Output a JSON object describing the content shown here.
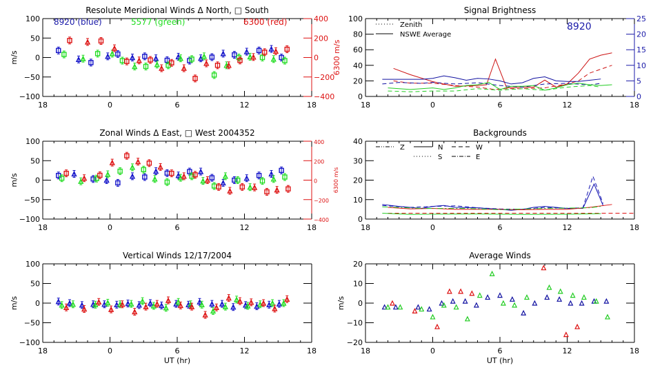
{
  "chart_data": [
    {
      "id": "meridional",
      "type": "scatter",
      "title": "Resolute Meridional Winds Δ North, □ South",
      "xlabel": "",
      "ylabel": "m/s",
      "y2label": "6300 m/s",
      "xlim": [
        -6,
        18
      ],
      "xticks": [
        "18",
        "0",
        "6",
        "12",
        "18"
      ],
      "ylim": [
        -100,
        100
      ],
      "yticks": [
        "100",
        "50",
        "0",
        "−50",
        "−100"
      ],
      "y2lim": [
        -400,
        400
      ],
      "y2ticks": [
        "400",
        "200",
        "0",
        "−200",
        "−400"
      ],
      "annotations": [
        {
          "text": "8920 (blue)",
          "color": "#1a1aa8"
        },
        {
          "text": "5577 (green)",
          "color": "#22dd22"
        },
        {
          "text": "6300 (red)",
          "color": "#dd1111"
        }
      ],
      "series": [
        {
          "name": "8920",
          "color": "#1010c8",
          "x": [
            -4.6,
            -2.8,
            -1.7,
            -0.2,
            0.7,
            2.0,
            3.1,
            4.1,
            5.1,
            6.1,
            7.1,
            8.1,
            9.1,
            10.1,
            11.1,
            12.2,
            13.3,
            14.4,
            15.3
          ],
          "y": [
            18,
            -5,
            -13,
            3,
            9,
            0,
            3,
            -2,
            -7,
            2,
            -8,
            -2,
            1,
            10,
            7,
            15,
            18,
            22,
            0
          ]
        },
        {
          "name": "5577",
          "color": "#22dd22",
          "x": [
            -4.1,
            -2.4,
            -1.1,
            0.2,
            1.1,
            2.2,
            3.2,
            4.2,
            5.2,
            6.3,
            7.3,
            8.4,
            9.3,
            10.4,
            11.5,
            12.5,
            13.6,
            14.6,
            15.6
          ],
          "y": [
            8,
            -3,
            10,
            10,
            -8,
            -23,
            -23,
            -18,
            -20,
            -2,
            -4,
            3,
            -45,
            -20,
            0,
            2,
            0,
            -4,
            -8
          ]
        },
        {
          "name": "6300",
          "color": "#dd1111",
          "x": [
            -3.6,
            -2.0,
            -0.8,
            0.4,
            1.5,
            2.6,
            3.6,
            4.6,
            5.5,
            6.6,
            7.6,
            8.6,
            9.6,
            10.6,
            11.6,
            12.8,
            13.8,
            14.8,
            15.8
          ],
          "y": [
            175,
            160,
            170,
            95,
            -40,
            -30,
            -25,
            -110,
            -55,
            -110,
            -215,
            -60,
            -80,
            -80,
            -30,
            5,
            55,
            65,
            85
          ]
        }
      ]
    },
    {
      "id": "brightness",
      "type": "line",
      "title": "Signal Brightness",
      "xlim": [
        -6,
        18
      ],
      "xticks": [
        "18",
        "0",
        "6",
        "12",
        "18"
      ],
      "ylim": [
        0,
        100
      ],
      "yticks": [
        "100",
        "80",
        "60",
        "40",
        "20",
        "0"
      ],
      "y2lim": [
        0,
        25
      ],
      "y2ticks": [
        "25",
        "20",
        "15",
        "10",
        "5",
        "0"
      ],
      "annotation": {
        "text": "8920",
        "color": "#1a1aa8"
      },
      "legend": [
        "Zenith",
        "NSWE Average"
      ],
      "legend_position": "top-left",
      "series": [
        {
          "name": "red NSWE",
          "color": "#cc1111",
          "dash": "",
          "x": [
            -3.5,
            -2,
            0,
            2,
            4,
            4.8,
            5.6,
            6.6,
            8,
            9,
            10,
            11,
            12,
            13,
            14,
            15,
            16
          ],
          "y": [
            36,
            28,
            19,
            13,
            14,
            15,
            48,
            11,
            12,
            12,
            21,
            12,
            16,
            30,
            48,
            53,
            56
          ]
        },
        {
          "name": "red zenith",
          "color": "#cc1111",
          "dash": "6,4",
          "x": [
            -3.5,
            -2,
            0,
            2,
            4,
            5.5,
            6.6,
            8,
            10,
            12,
            13,
            14,
            15,
            16
          ],
          "y": [
            20,
            17,
            17,
            14,
            12,
            9,
            10,
            10,
            11,
            16,
            20,
            30,
            35,
            40
          ]
        },
        {
          "name": "blue NSWE",
          "color": "#1010a0",
          "dash": "",
          "x": [
            -4.5,
            -3,
            -1,
            0,
            1,
            2,
            3,
            4,
            5,
            6,
            7,
            8,
            9,
            10,
            11,
            12,
            13,
            14,
            15
          ],
          "y": [
            5.5,
            5.5,
            5.5,
            5.8,
            6.6,
            6,
            5.2,
            5.8,
            5.6,
            5.0,
            4.0,
            4.4,
            5.8,
            6.3,
            5,
            4.8,
            4.8,
            5.2,
            5.6
          ]
        },
        {
          "name": "blue zenith",
          "color": "#1010a0",
          "dash": "6,4",
          "x": [
            -4.5,
            -3,
            -1,
            0,
            2,
            4,
            6,
            8,
            10,
            12,
            14,
            15
          ],
          "y": [
            4,
            4.5,
            4.2,
            4.5,
            4,
            4.4,
            3.5,
            3,
            4,
            4.2,
            3.7,
            4.2
          ]
        },
        {
          "name": "green NSWE",
          "color": "#22cc22",
          "dash": "",
          "x": [
            -4,
            -2,
            0,
            1,
            2,
            3,
            4,
            5,
            6,
            7,
            8,
            9,
            10,
            11,
            12,
            13,
            14,
            15,
            16
          ],
          "y": [
            11,
            9,
            11,
            9,
            11,
            14,
            15,
            18,
            9,
            13,
            13,
            14,
            8,
            11,
            15,
            17,
            15,
            14,
            15
          ]
        },
        {
          "name": "green zenith",
          "color": "#22cc22",
          "dash": "6,4",
          "x": [
            -4,
            -2,
            0,
            2,
            4,
            6,
            8,
            10,
            12,
            14,
            15
          ],
          "y": [
            7,
            6,
            7,
            7,
            10,
            8,
            10,
            8,
            12,
            14,
            12
          ]
        }
      ]
    },
    {
      "id": "zonal",
      "type": "scatter",
      "title": "Zonal Winds Δ East, □ West 2004352",
      "ylabel": "m/s",
      "y2label": "6300 m/s",
      "xlim": [
        -6,
        18
      ],
      "xticks": [
        "18",
        "0",
        "6",
        "12",
        "18"
      ],
      "ylim": [
        -100,
        100
      ],
      "yticks": [
        "100",
        "50",
        "0",
        "−50",
        "−100"
      ],
      "y2lim": [
        -400,
        400
      ],
      "y2ticks": [
        "400",
        "200",
        "0",
        "−200",
        "−400"
      ],
      "series": [
        {
          "name": "8920",
          "color": "#1010c8",
          "x": [
            -4.6,
            -3.2,
            -1.5,
            -0.3,
            0.7,
            2.0,
            3.1,
            4.1,
            5.1,
            6.1,
            7.1,
            8.1,
            9.1,
            10.1,
            11.1,
            12.2,
            13.3,
            14.4,
            15.3
          ],
          "y": [
            12,
            16,
            3,
            0,
            -7,
            10,
            8,
            23,
            18,
            12,
            22,
            22,
            6,
            -7,
            0,
            5,
            12,
            16,
            25
          ]
        },
        {
          "name": "5577",
          "color": "#22dd22",
          "x": [
            -4.3,
            -2.6,
            -1.2,
            -0.2,
            0.9,
            2.0,
            3.0,
            4.0,
            5.1,
            6.3,
            7.3,
            8.3,
            9.3,
            10.3,
            11.4,
            12.5,
            13.6,
            14.6,
            15.6
          ],
          "y": [
            5,
            -3,
            4,
            15,
            23,
            33,
            27,
            3,
            -5,
            6,
            10,
            -2,
            -15,
            10,
            0,
            -18,
            -2,
            3,
            8
          ]
        },
        {
          "name": "6300",
          "color": "#dd1111",
          "x": [
            -3.9,
            -2.3,
            -0.9,
            0.2,
            1.5,
            2.5,
            3.5,
            4.5,
            5.5,
            6.6,
            7.6,
            8.7,
            9.7,
            10.7,
            11.8,
            12.9,
            14.0,
            14.9,
            15.9
          ],
          "y": [
            70,
            20,
            50,
            180,
            250,
            190,
            175,
            135,
            70,
            40,
            55,
            0,
            -70,
            -110,
            -70,
            -75,
            -120,
            -100,
            -90
          ]
        }
      ]
    },
    {
      "id": "backgrounds",
      "type": "line",
      "title": "Backgrounds",
      "xlim": [
        -6,
        18
      ],
      "xticks": [
        "18",
        "0",
        "6",
        "12",
        "18"
      ],
      "ylim": [
        0,
        40
      ],
      "yticks": [
        "40",
        "30",
        "20",
        "10",
        "0"
      ],
      "legend": [
        "Z",
        "N",
        "W",
        "S",
        "E"
      ],
      "legend_position": "top-left",
      "series": [
        {
          "name": "blue N",
          "color": "#1010b0",
          "dash": "",
          "x": [
            -4.5,
            -3,
            -1,
            0,
            1,
            2,
            4,
            6,
            7,
            8,
            9,
            10,
            11,
            12,
            13.4,
            14.4,
            15.2
          ],
          "y": [
            7.5,
            6.5,
            5.5,
            6.5,
            7,
            6,
            5.8,
            5,
            4.5,
            5,
            6,
            6.5,
            6,
            5.5,
            5.5,
            18,
            7
          ]
        },
        {
          "name": "blue W",
          "color": "#1010b0",
          "dash": "6,4",
          "x": [
            -4.5,
            -2,
            0,
            2,
            4,
            6,
            8,
            10,
            12,
            13.4,
            14.3,
            15.2
          ],
          "y": [
            7,
            6,
            6.5,
            6.8,
            5.8,
            5.2,
            5,
            6,
            5.5,
            5.8,
            22,
            8
          ]
        },
        {
          "name": "red N",
          "color": "#dd1111",
          "dash": "",
          "x": [
            -4,
            -2,
            0,
            2,
            4,
            6,
            8,
            10,
            12,
            14,
            16
          ],
          "y": [
            6,
            5.2,
            5.5,
            5,
            5,
            5,
            4.8,
            5,
            5,
            6,
            7.5
          ]
        },
        {
          "name": "red W",
          "color": "#dd1111",
          "dash": "6,4",
          "x": [
            -4,
            0,
            4,
            8,
            12,
            16,
            18
          ],
          "y": [
            3,
            3,
            3,
            3,
            3,
            3,
            3
          ]
        },
        {
          "name": "green N",
          "color": "#22cc22",
          "dash": "",
          "x": [
            -4.5,
            -2,
            0,
            4,
            8,
            12,
            15
          ],
          "y": [
            3,
            2.4,
            2.5,
            2.6,
            2.4,
            2.5,
            2.8
          ]
        },
        {
          "name": "green E",
          "color": "#22cc22",
          "dash": "8,3,2,3",
          "x": [
            -4.5,
            -1,
            3,
            6,
            10,
            14,
            15
          ],
          "y": [
            6.3,
            5.5,
            5.5,
            4.8,
            5.5,
            5.8,
            6.5
          ]
        }
      ]
    },
    {
      "id": "vertical",
      "type": "scatter",
      "title": "Vertical Winds 12/17/2004",
      "xlabel": "UT (hr)",
      "ylabel": "m/s",
      "xlim": [
        -6,
        18
      ],
      "xticks": [
        "18",
        "0",
        "6",
        "12",
        "18"
      ],
      "ylim": [
        -100,
        100
      ],
      "yticks": [
        "100",
        "50",
        "0",
        "−50",
        "−100"
      ],
      "series": [
        {
          "name": "8920",
          "color": "#1010c8",
          "x": [
            -4.6,
            -3.6,
            -2.5,
            -1.5,
            -0.5,
            0.6,
            1.6,
            2.6,
            3.6,
            4.6,
            5.9,
            7.0,
            8.0,
            9.1,
            10.0,
            11.0,
            12.1,
            13.1,
            14.2,
            15.1
          ],
          "y": [
            4,
            0,
            -5,
            -3,
            -3,
            -4,
            -1,
            -5,
            0,
            -6,
            -2,
            -4,
            3,
            -2,
            -2,
            -10,
            -5,
            -8,
            -4,
            -2
          ]
        },
        {
          "name": "5577",
          "color": "#22dd22",
          "x": [
            -4.3,
            -3.3,
            -1.3,
            -0.2,
            0.9,
            1.9,
            2.9,
            3.9,
            5.0,
            6.1,
            7.2,
            8.2,
            9.2,
            10.3,
            11.3,
            12.3,
            13.4,
            14.5,
            15.5
          ],
          "y": [
            -5,
            -3,
            -4,
            1,
            -3,
            -2,
            5,
            -7,
            -12,
            3,
            -3,
            -4,
            -20,
            -9,
            9,
            -7,
            -3,
            0,
            0
          ]
        },
        {
          "name": "6300",
          "color": "#dd1111",
          "x": [
            -3.9,
            -2.3,
            -1.0,
            0.1,
            1.1,
            2.2,
            3.2,
            4.2,
            5.2,
            6.3,
            7.3,
            8.5,
            9.5,
            10.6,
            11.6,
            12.6,
            13.7,
            14.7,
            15.8
          ],
          "y": [
            -11,
            -15,
            3,
            -16,
            -3,
            -22,
            -9,
            -2,
            7,
            -6,
            -9,
            -30,
            -11,
            13,
            5,
            2,
            0,
            -14,
            10
          ]
        }
      ]
    },
    {
      "id": "average",
      "type": "scatter",
      "title": "Average Winds",
      "xlabel": "UT (hr)",
      "ylabel": "m/s",
      "xlim": [
        -6,
        18
      ],
      "xticks": [
        "18",
        "0",
        "6",
        "12",
        "18"
      ],
      "ylim": [
        -20,
        20
      ],
      "yticks": [
        "20",
        "10",
        "0",
        "−10",
        "−20"
      ],
      "series": [
        {
          "name": "8920",
          "color": "#1010a0",
          "x": [
            -4.3,
            -3.3,
            -1.3,
            -0.3,
            0.8,
            1.8,
            2.9,
            3.9,
            4.9,
            6.0,
            7.1,
            8.1,
            9.1,
            10.2,
            11.3,
            12.3,
            13.3,
            14.4,
            15.5
          ],
          "y": [
            -2,
            -2,
            -2,
            -3,
            0,
            1,
            1,
            -1,
            3,
            4,
            2,
            -5,
            0,
            3,
            2,
            0,
            0,
            1,
            1
          ]
        },
        {
          "name": "5577",
          "color": "#22cc22",
          "x": [
            -4.0,
            -2.9,
            -1.0,
            0.0,
            1.0,
            2.1,
            3.1,
            4.2,
            5.3,
            6.3,
            7.3,
            8.4,
            10.4,
            11.4,
            12.5,
            13.5,
            14.6,
            15.6
          ],
          "y": [
            -2,
            -2,
            -3,
            -7,
            -1,
            -2,
            -8,
            4,
            15,
            0,
            -1,
            3,
            8,
            6,
            4,
            3,
            1,
            -7
          ]
        },
        {
          "name": "6300",
          "color": "#dd1111",
          "x": [
            -3.6,
            -1.6,
            0.4,
            1.5,
            2.5,
            3.5,
            9.9,
            11.9,
            12.9
          ],
          "y": [
            0,
            -4,
            -12,
            6,
            6,
            5,
            18,
            -16,
            -12
          ]
        }
      ]
    }
  ]
}
